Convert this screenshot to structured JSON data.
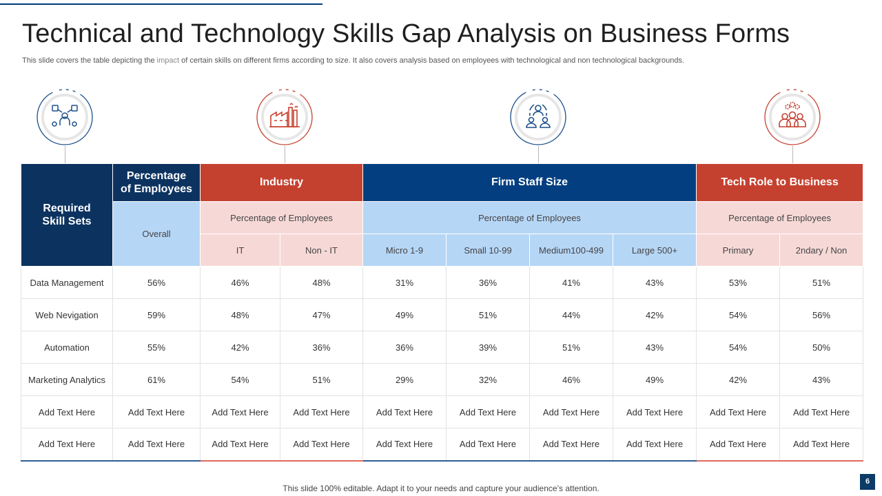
{
  "slide": {
    "title": "Technical and Technology Skills Gap Analysis on Business Forms",
    "subtitle_before": "This slide covers the table depicting the ",
    "subtitle_highlight": "impact",
    "subtitle_after": " of certain skills on different firms according to size. It also covers analysis based on employees with technological and non technological backgrounds.",
    "footer": "This slide 100% editable. Adapt it to your needs and capture your audience’s attention.",
    "page_number": "6"
  },
  "icons": [
    {
      "name": "skills-people-icon",
      "color": "#1b4f8a"
    },
    {
      "name": "factory-icon",
      "color": "#c5412f"
    },
    {
      "name": "team-circle-icon",
      "color": "#1b4f8a"
    },
    {
      "name": "group-gears-icon",
      "color": "#c5412f"
    }
  ],
  "colors": {
    "navy": "#0c3360",
    "red": "#c5412f",
    "blue": "#033f80",
    "light_blue": "#b6d6f6",
    "pink": "#f6d9d7"
  },
  "table": {
    "skills_header": "Required\nSkill Sets",
    "pct_header": "Percentage\nof Employees",
    "groups": {
      "industry": "Industry",
      "firm_staff": "Firm Staff Size",
      "tech_role": "Tech Role to Business"
    },
    "sub_headers": {
      "overall": "Overall",
      "industry": "Percentage of Employees",
      "firm_staff": "Percentage of Employees",
      "tech_role": "Percentage of Employees"
    },
    "columns": [
      "IT",
      "Non - IT",
      "Micro 1-9",
      "Small 10-99",
      "Medium100-499",
      "Large 500+",
      "Primary",
      "2ndary / Non"
    ],
    "rows": [
      [
        "Data Management",
        "56%",
        "46%",
        "48%",
        "31%",
        "36%",
        "41%",
        "43%",
        "53%",
        "51%"
      ],
      [
        "Web Nevigation",
        "59%",
        "48%",
        "47%",
        "49%",
        "51%",
        "44%",
        "42%",
        "54%",
        "56%"
      ],
      [
        "Automation",
        "55%",
        "42%",
        "36%",
        "36%",
        "39%",
        "51%",
        "43%",
        "54%",
        "50%"
      ],
      [
        "Marketing Analytics",
        "61%",
        "54%",
        "51%",
        "29%",
        "32%",
        "46%",
        "49%",
        "42%",
        "43%"
      ],
      [
        "Add Text Here",
        "Add Text Here",
        "Add Text Here",
        "Add Text Here",
        "Add Text Here",
        "Add Text Here",
        "Add Text Here",
        "Add Text Here",
        "Add Text Here",
        "Add Text Here"
      ],
      [
        "Add Text Here",
        "Add Text Here",
        "Add Text Here",
        "Add Text Here",
        "Add Text Here",
        "Add Text Here",
        "Add Text Here",
        "Add Text Here",
        "Add Text Here",
        "Add Text Here"
      ]
    ]
  }
}
